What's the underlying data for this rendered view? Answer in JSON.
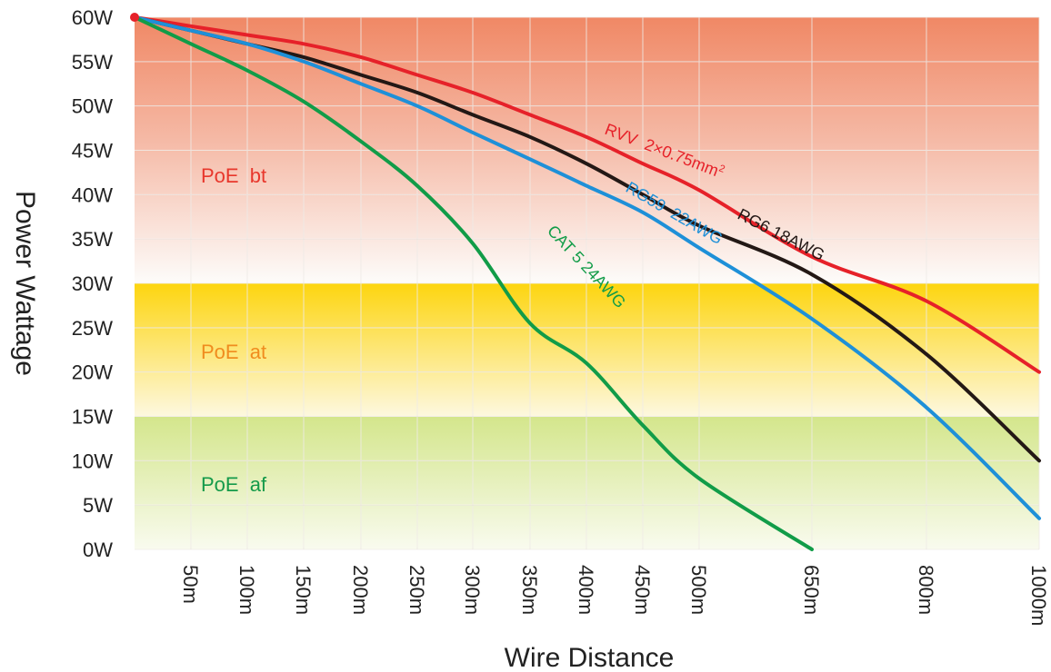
{
  "chart_data": {
    "type": "line",
    "title": "",
    "xlabel": "Wire Distance",
    "ylabel": "Power Wattage",
    "x_ticks": [
      "50m",
      "100m",
      "150m",
      "200m",
      "250m",
      "300m",
      "350m",
      "400m",
      "450m",
      "500m",
      "650m",
      "800m",
      "1000m"
    ],
    "y_ticks": [
      "0W",
      "5W",
      "10W",
      "15W",
      "20W",
      "25W",
      "30W",
      "35W",
      "40W",
      "45W",
      "50W",
      "55W",
      "60W"
    ],
    "ylim": [
      0,
      60
    ],
    "grid": true,
    "zones": [
      {
        "name": "PoE bt",
        "label": "PoE  bt",
        "from": 30,
        "to": 60,
        "color": "#e8372c"
      },
      {
        "name": "PoE at",
        "label": "PoE  at",
        "from": 15,
        "to": 30,
        "color": "#f08c1e"
      },
      {
        "name": "PoE af",
        "label": "PoE  af",
        "from": 0,
        "to": 15,
        "color": "#149a4a"
      }
    ],
    "series": [
      {
        "name": "RVV 2×0.75mm²",
        "label": "RVV  2×0.75mm",
        "sup": "2",
        "color": "#e62129",
        "points": [
          [
            0,
            60
          ],
          [
            50,
            59
          ],
          [
            100,
            58
          ],
          [
            150,
            57
          ],
          [
            200,
            55.5
          ],
          [
            250,
            53.5
          ],
          [
            300,
            51.5
          ],
          [
            350,
            49
          ],
          [
            400,
            46.5
          ],
          [
            450,
            43.5
          ],
          [
            500,
            40.5
          ],
          [
            650,
            33
          ],
          [
            800,
            28
          ],
          [
            1000,
            20
          ]
        ]
      },
      {
        "name": "RG6 18AWG",
        "label": "RG6 18AWG",
        "color": "#231815",
        "points": [
          [
            0,
            60
          ],
          [
            50,
            58.5
          ],
          [
            100,
            57
          ],
          [
            150,
            55.5
          ],
          [
            200,
            53.5
          ],
          [
            250,
            51.5
          ],
          [
            300,
            49
          ],
          [
            350,
            46.5
          ],
          [
            400,
            43.5
          ],
          [
            450,
            40
          ],
          [
            500,
            36.5
          ],
          [
            650,
            31
          ],
          [
            800,
            22
          ],
          [
            1000,
            10
          ]
        ]
      },
      {
        "name": "RG59 22AWG",
        "label": "RG59  22AWG",
        "color": "#1e90d8",
        "points": [
          [
            0,
            60
          ],
          [
            50,
            58.5
          ],
          [
            100,
            57
          ],
          [
            150,
            55
          ],
          [
            200,
            52.5
          ],
          [
            250,
            50
          ],
          [
            300,
            47
          ],
          [
            350,
            44
          ],
          [
            400,
            41
          ],
          [
            450,
            38
          ],
          [
            500,
            34
          ],
          [
            650,
            26
          ],
          [
            800,
            16
          ],
          [
            1000,
            3.5
          ]
        ]
      },
      {
        "name": "CAT 5 24AWG",
        "label": "CAT 5 24AWG",
        "color": "#119c48",
        "points": [
          [
            0,
            60
          ],
          [
            50,
            57
          ],
          [
            100,
            54
          ],
          [
            150,
            50.5
          ],
          [
            200,
            46
          ],
          [
            250,
            41
          ],
          [
            300,
            34.5
          ],
          [
            350,
            25.5
          ],
          [
            400,
            21
          ],
          [
            450,
            14
          ],
          [
            500,
            8
          ],
          [
            650,
            0
          ]
        ]
      }
    ],
    "marker": {
      "x": 0,
      "y": 60,
      "color": "#e62129"
    }
  }
}
